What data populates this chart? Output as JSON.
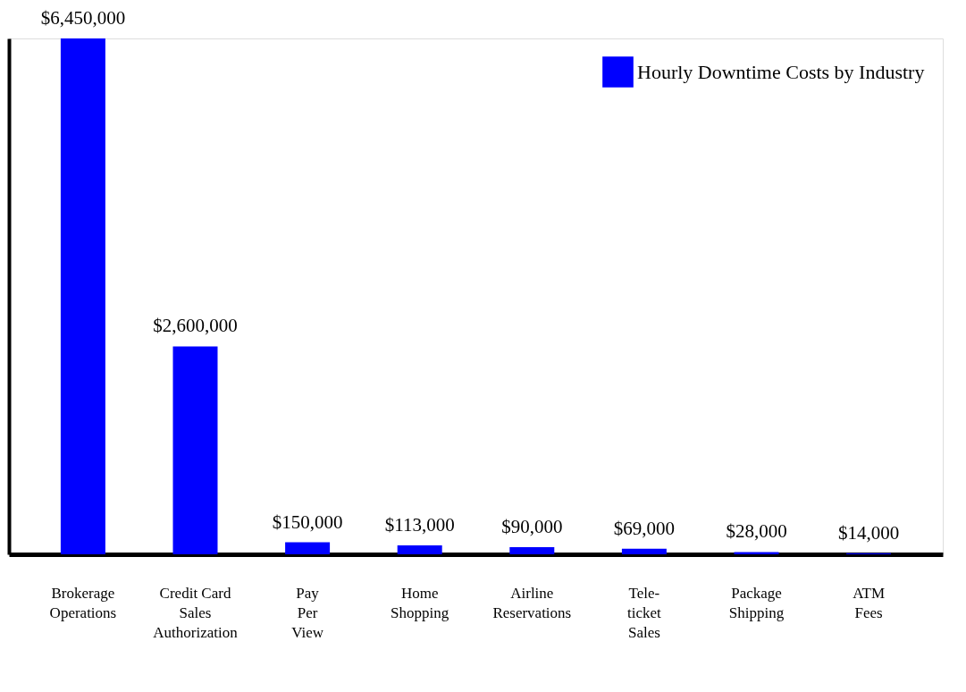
{
  "chart_data": {
    "type": "bar",
    "categories": [
      "Brokerage\nOperations",
      "Credit Card\nSales\nAuthorization",
      "Pay\nPer\nView",
      "Home\nShopping",
      "Airline\nReservations",
      "Tele-\nticket\nSales",
      "Package\nShipping",
      "ATM\nFees"
    ],
    "series": [
      {
        "name": "Hourly Downtime Costs by Industry",
        "color": "#0000ff",
        "values": [
          6450000,
          2600000,
          150000,
          113000,
          90000,
          69000,
          28000,
          14000
        ],
        "value_labels": [
          "$6,450,000",
          "$2,600,000",
          "$150,000",
          "$113,000",
          "$90,000",
          "$69,000",
          "$28,000",
          "$14,000"
        ]
      }
    ],
    "legend": "top right",
    "grid": false
  }
}
